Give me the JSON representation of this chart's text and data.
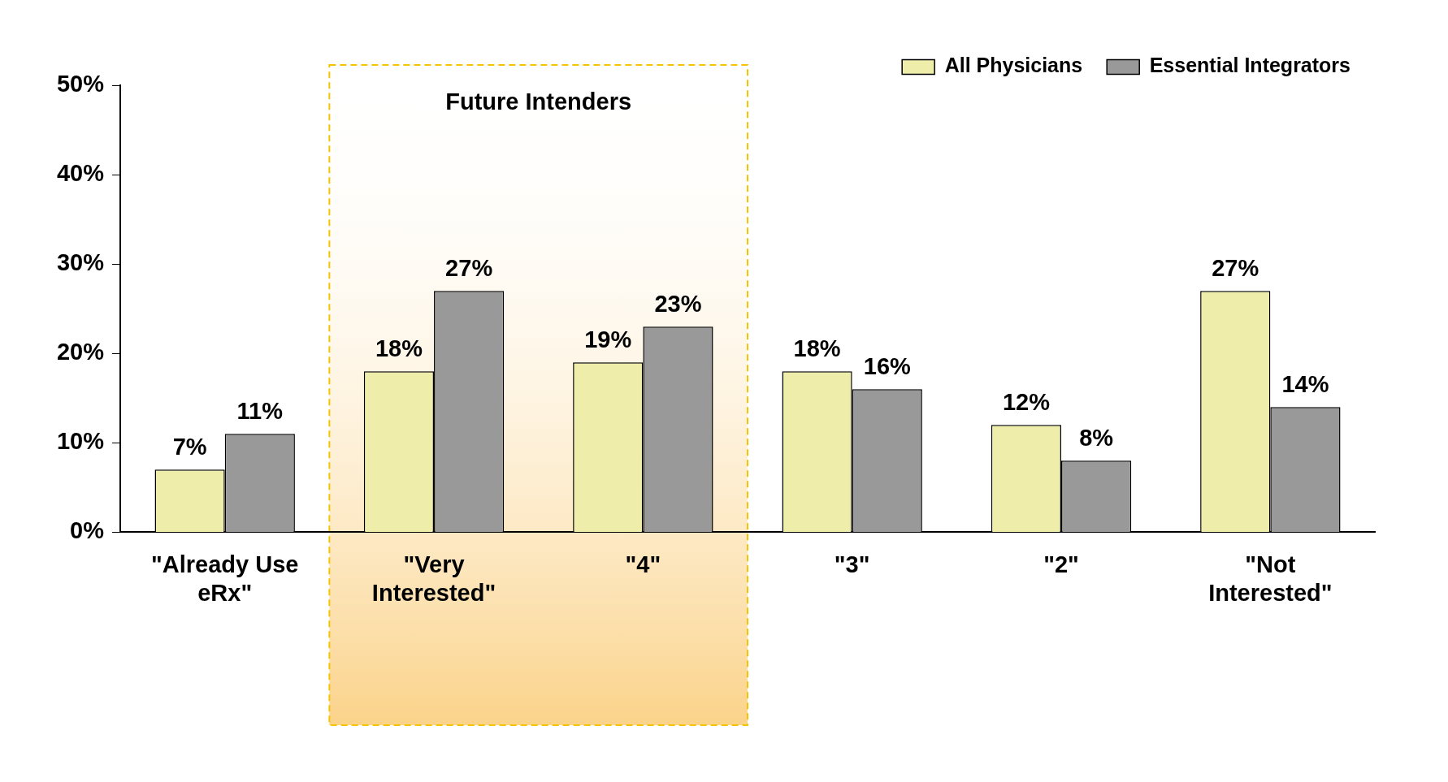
{
  "chart_data": {
    "type": "bar",
    "categories": [
      "\"Already Use eRx\"",
      "\"Very Interested\"",
      "\"4\"",
      "\"3\"",
      "\"2\"",
      "\"Not Interested\""
    ],
    "series": [
      {
        "name": "All Physicians",
        "color": "#eeeeaa",
        "values": [
          7,
          18,
          19,
          18,
          12,
          27
        ]
      },
      {
        "name": "Essential Integrators",
        "color": "#999999",
        "values": [
          11,
          27,
          23,
          16,
          8,
          14
        ]
      }
    ],
    "ylim": [
      0,
      50
    ],
    "yticks": [
      {
        "value": 0,
        "label": "0%"
      },
      {
        "value": 10,
        "label": "10%"
      },
      {
        "value": 20,
        "label": "20%"
      },
      {
        "value": 30,
        "label": "30%"
      },
      {
        "value": 40,
        "label": "40%"
      },
      {
        "value": 50,
        "label": "50%"
      }
    ],
    "value_labels": [
      [
        "7%",
        "18%",
        "19%",
        "18%",
        "12%",
        "27%"
      ],
      [
        "11%",
        "27%",
        "23%",
        "16%",
        "8%",
        "14%"
      ]
    ],
    "bands": [
      {
        "axis": "x",
        "from": "\"Very Interested\"",
        "to": "\"4\"",
        "label": "Future Intenders",
        "color": "#fbd38a"
      }
    ],
    "legend": "top right",
    "grid": false
  }
}
